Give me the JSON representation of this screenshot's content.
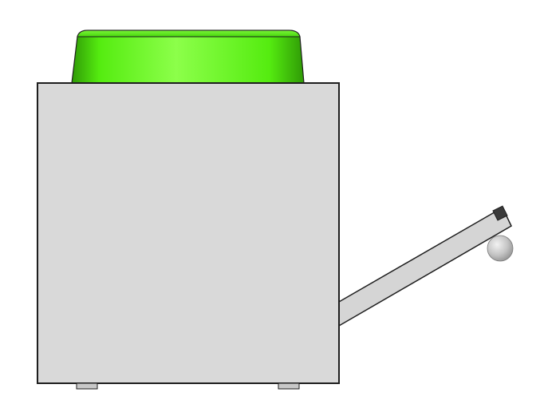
{
  "scene": {
    "background_color": "#ffffff",
    "outline_color": "#1e1e1e",
    "housing": {
      "name": "gray-box",
      "fill_color": "#d9d9d9"
    },
    "top_button": {
      "name": "green-button",
      "light_color": "#8cff4a",
      "mid_color": "#55ec10",
      "dark_color": "#2f9a06"
    },
    "lever": {
      "name": "lever-arm",
      "fill_color": "#d5d5d5"
    },
    "knob": {
      "name": "sphere-knob",
      "light_color": "#f2f2f2",
      "dark_color": "#8c8c8c"
    },
    "feet": {
      "count": 2,
      "fill_color": "#c8c8c8"
    }
  }
}
